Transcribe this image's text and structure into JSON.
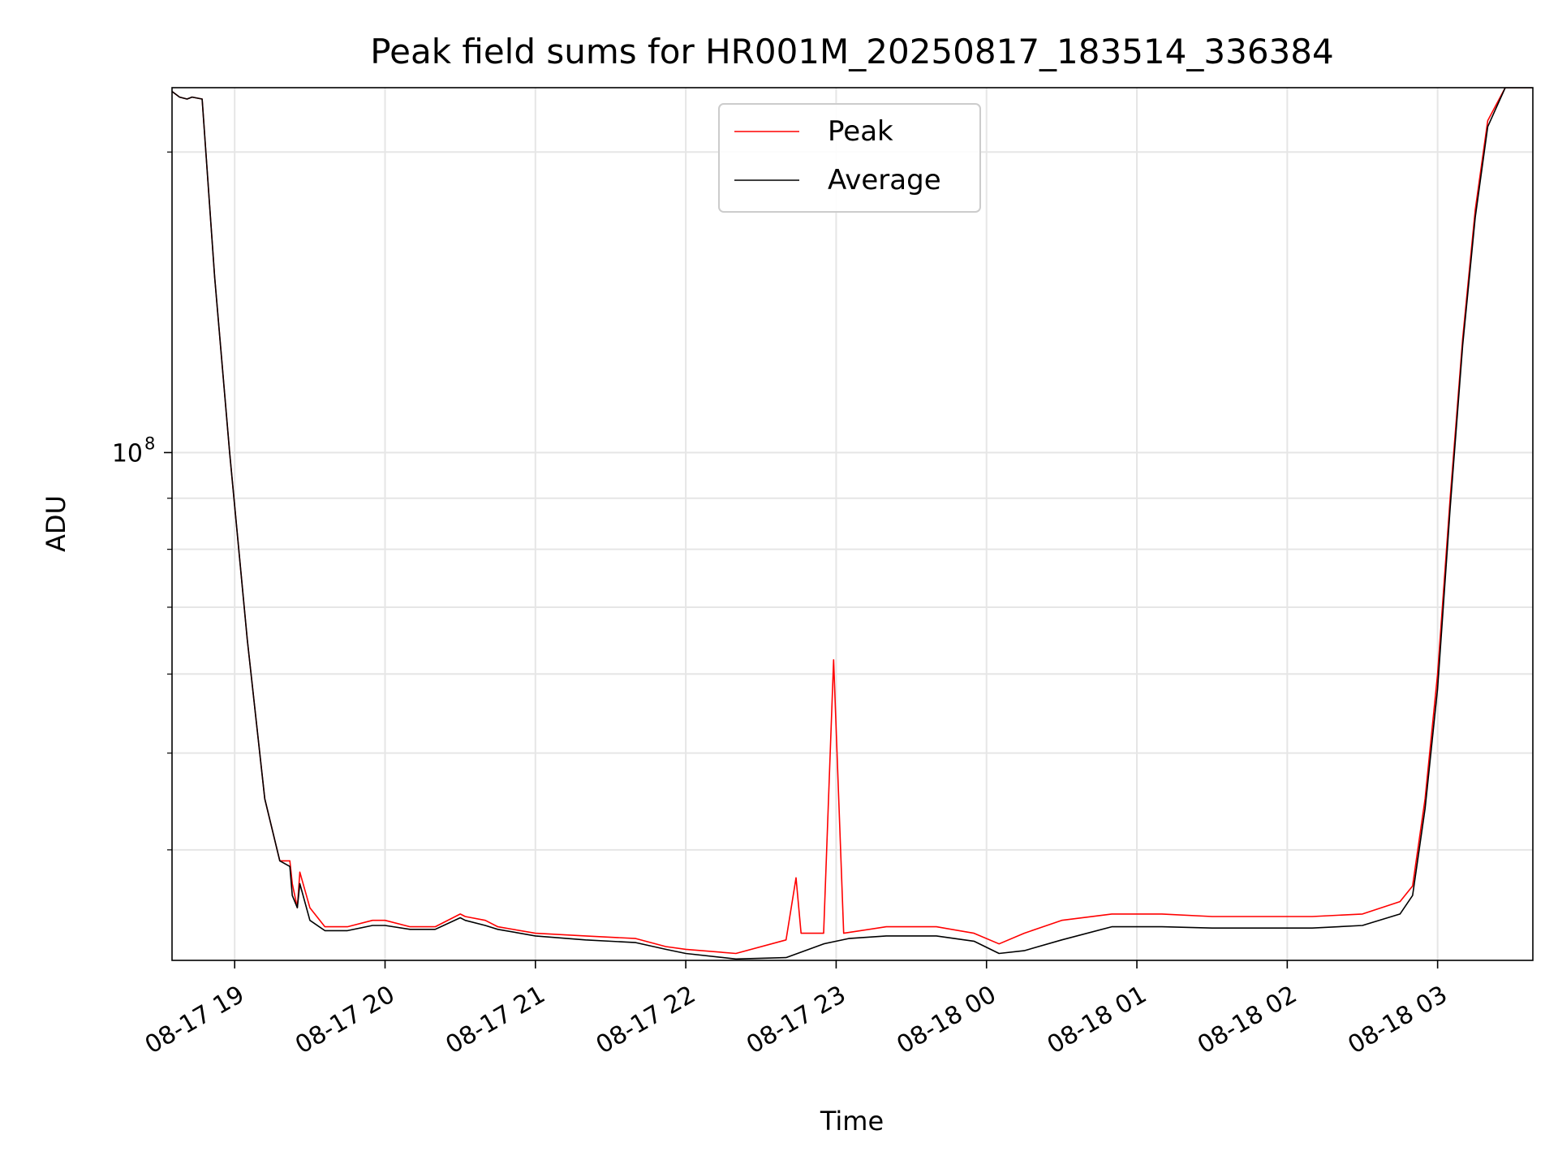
{
  "chart_data": {
    "type": "line",
    "title": "Peak field sums for HR001M_20250817_183514_336384",
    "xlabel": "Time",
    "ylabel": "ADU",
    "y_scale": "log",
    "grid": true,
    "legend_position": "top-center",
    "x_ticks": [
      "08-17 19",
      "08-17 20",
      "08-17 21",
      "08-17 22",
      "08-17 23",
      "08-18 00",
      "08-18 01",
      "08-18 02",
      "08-18 03"
    ],
    "x_tick_times": [
      "2025-08-17 19:00",
      "2025-08-17 20:00",
      "2025-08-17 21:00",
      "2025-08-17 22:00",
      "2025-08-17 23:00",
      "2025-08-18 00:00",
      "2025-08-18 01:00",
      "2025-08-18 02:00",
      "2025-08-18 03:00"
    ],
    "xlim": [
      "2025-08-17 18:35",
      "2025-08-18 03:38"
    ],
    "y_ticks": [
      {
        "label": "10",
        "exp": "8",
        "value": 100000000
      }
    ],
    "ylim": [
      31000000,
      232000000
    ],
    "series": [
      {
        "name": "Peak",
        "color": "#ff0000",
        "x": [
          "2025-08-17 18:35",
          "2025-08-17 18:38",
          "2025-08-17 18:41",
          "2025-08-17 18:43",
          "2025-08-17 18:47",
          "2025-08-17 18:52",
          "2025-08-17 18:58",
          "2025-08-17 19:05",
          "2025-08-17 19:12",
          "2025-08-17 19:18",
          "2025-08-17 19:22",
          "2025-08-17 19:23",
          "2025-08-17 19:25",
          "2025-08-17 19:26",
          "2025-08-17 19:30",
          "2025-08-17 19:36",
          "2025-08-17 19:45",
          "2025-08-17 19:55",
          "2025-08-17 20:00",
          "2025-08-17 20:10",
          "2025-08-17 20:20",
          "2025-08-17 20:30",
          "2025-08-17 20:32",
          "2025-08-17 20:40",
          "2025-08-17 20:45",
          "2025-08-17 21:00",
          "2025-08-17 21:20",
          "2025-08-17 21:40",
          "2025-08-17 21:52",
          "2025-08-17 22:00",
          "2025-08-17 22:20",
          "2025-08-17 22:40",
          "2025-08-17 22:44",
          "2025-08-17 22:46",
          "2025-08-17 22:55",
          "2025-08-17 22:59",
          "2025-08-17 23:03",
          "2025-08-17 23:20",
          "2025-08-17 23:40",
          "2025-08-17 23:55",
          "2025-08-18 00:05",
          "2025-08-18 00:15",
          "2025-08-18 00:30",
          "2025-08-18 00:50",
          "2025-08-18 01:10",
          "2025-08-18 01:30",
          "2025-08-18 01:50",
          "2025-08-18 02:10",
          "2025-08-18 02:30",
          "2025-08-18 02:45",
          "2025-08-18 02:50",
          "2025-08-18 02:55",
          "2025-08-18 03:00",
          "2025-08-18 03:05",
          "2025-08-18 03:10",
          "2025-08-18 03:15",
          "2025-08-18 03:20",
          "2025-08-18 03:27",
          "2025-08-18 03:38"
        ],
        "values": [
          230000000,
          227000000,
          226000000,
          227000000,
          226000000,
          150000000,
          100000000,
          65000000,
          45000000,
          39000000,
          39000000,
          37000000,
          35000000,
          38000000,
          35000000,
          33500000,
          33500000,
          34000000,
          34000000,
          33500000,
          33500000,
          34500000,
          34300000,
          34000000,
          33500000,
          33000000,
          32800000,
          32600000,
          32000000,
          31800000,
          31500000,
          32500000,
          37500000,
          33000000,
          33000000,
          62000000,
          33000000,
          33500000,
          33500000,
          33000000,
          32200000,
          33000000,
          34000000,
          34500000,
          34500000,
          34300000,
          34300000,
          34300000,
          34500000,
          35500000,
          36800000,
          45000000,
          60000000,
          90000000,
          130000000,
          175000000,
          215000000,
          232000000,
          232000000
        ]
      },
      {
        "name": "Average",
        "color": "#000000",
        "x": [
          "2025-08-17 18:35",
          "2025-08-17 18:38",
          "2025-08-17 18:41",
          "2025-08-17 18:43",
          "2025-08-17 18:47",
          "2025-08-17 18:52",
          "2025-08-17 18:58",
          "2025-08-17 19:05",
          "2025-08-17 19:12",
          "2025-08-17 19:18",
          "2025-08-17 19:22",
          "2025-08-17 19:23",
          "2025-08-17 19:25",
          "2025-08-17 19:26",
          "2025-08-17 19:30",
          "2025-08-17 19:36",
          "2025-08-17 19:45",
          "2025-08-17 19:55",
          "2025-08-17 20:00",
          "2025-08-17 20:10",
          "2025-08-17 20:20",
          "2025-08-17 20:30",
          "2025-08-17 20:32",
          "2025-08-17 20:40",
          "2025-08-17 20:45",
          "2025-08-17 21:00",
          "2025-08-17 21:20",
          "2025-08-17 21:40",
          "2025-08-17 21:52",
          "2025-08-17 22:00",
          "2025-08-17 22:20",
          "2025-08-17 22:40",
          "2025-08-17 22:55",
          "2025-08-17 23:05",
          "2025-08-17 23:20",
          "2025-08-17 23:40",
          "2025-08-17 23:55",
          "2025-08-18 00:05",
          "2025-08-18 00:15",
          "2025-08-18 00:30",
          "2025-08-18 00:50",
          "2025-08-18 01:10",
          "2025-08-18 01:30",
          "2025-08-18 01:50",
          "2025-08-18 02:10",
          "2025-08-18 02:30",
          "2025-08-18 02:45",
          "2025-08-18 02:50",
          "2025-08-18 02:55",
          "2025-08-18 03:00",
          "2025-08-18 03:05",
          "2025-08-18 03:10",
          "2025-08-18 03:15",
          "2025-08-18 03:20",
          "2025-08-18 03:27",
          "2025-08-18 03:38"
        ],
        "values": [
          230000000,
          227000000,
          226000000,
          227000000,
          226000000,
          150000000,
          100000000,
          65000000,
          45000000,
          39000000,
          38500000,
          36000000,
          35000000,
          37000000,
          34000000,
          33200000,
          33200000,
          33600000,
          33600000,
          33300000,
          33300000,
          34200000,
          34000000,
          33600000,
          33300000,
          32800000,
          32500000,
          32300000,
          31800000,
          31500000,
          31100000,
          31200000,
          32200000,
          32600000,
          32800000,
          32800000,
          32400000,
          31500000,
          31700000,
          32500000,
          33500000,
          33500000,
          33400000,
          33400000,
          33400000,
          33600000,
          34500000,
          36000000,
          44000000,
          58000000,
          88000000,
          128000000,
          172000000,
          212000000,
          232000000,
          232000000
        ]
      }
    ]
  }
}
